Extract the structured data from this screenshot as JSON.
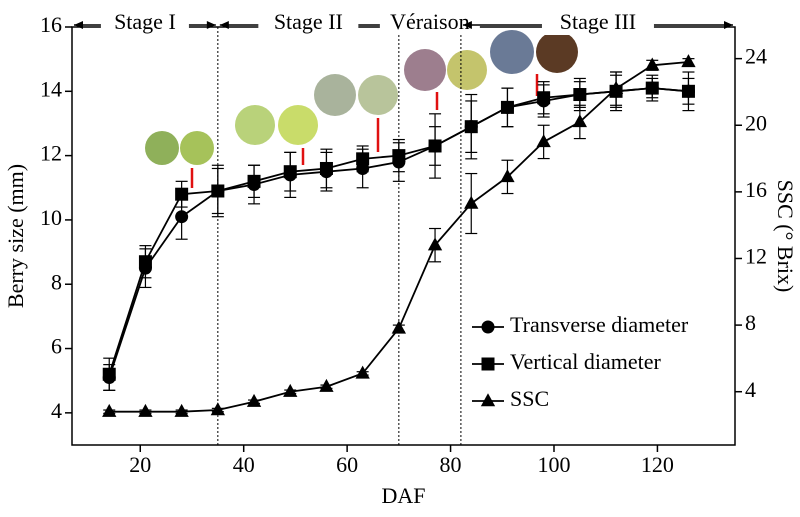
{
  "chart_data": {
    "type": "line",
    "xlabel": "DAF",
    "ylabel": "Berry size (mm)",
    "y2label": "SSC (° Brix)",
    "x": [
      14,
      21,
      28,
      35,
      42,
      49,
      56,
      63,
      70,
      77,
      84,
      91,
      98,
      105,
      112,
      119,
      126
    ],
    "series": [
      {
        "name": "Transverse diameter",
        "marker": "circle",
        "color": "#000000",
        "values": [
          5.1,
          8.5,
          10.1,
          10.9,
          11.1,
          11.4,
          11.5,
          11.6,
          11.8,
          12.3,
          12.9,
          13.5,
          13.7,
          13.9,
          14.0,
          14.1,
          14.0
        ],
        "errors": [
          0.4,
          0.6,
          0.7,
          0.7,
          0.6,
          0.7,
          0.6,
          0.6,
          0.6,
          1.0,
          1.0,
          0.6,
          0.5,
          0.4,
          0.5,
          0.3,
          0.6
        ]
      },
      {
        "name": "Vertical diameter",
        "marker": "square",
        "color": "#000000",
        "values": [
          5.2,
          8.7,
          10.8,
          10.9,
          11.2,
          11.5,
          11.6,
          11.9,
          12.0,
          12.3,
          12.9,
          13.5,
          13.8,
          13.9,
          14.0,
          14.1,
          14.0
        ],
        "errors": [
          0.5,
          0.5,
          0.4,
          0.8,
          0.5,
          0.6,
          0.6,
          0.4,
          0.5,
          0.6,
          0.8,
          0.6,
          0.5,
          0.5,
          0.6,
          0.4,
          0.4
        ]
      },
      {
        "name": "SSC",
        "marker": "triangle",
        "color": "#000000",
        "axis": "y2",
        "values": [
          2.8,
          2.8,
          2.8,
          2.9,
          3.4,
          4.0,
          4.3,
          5.1,
          7.8,
          12.8,
          15.3,
          16.9,
          19.0,
          20.2,
          22.2,
          23.6,
          23.8
        ],
        "errors": [
          0.1,
          0.1,
          0.1,
          0.1,
          0.1,
          0.1,
          0.1,
          0.1,
          0.2,
          1.0,
          1.8,
          1.0,
          1.0,
          1.0,
          1.0,
          0.3,
          0.2
        ]
      }
    ],
    "xlim": [
      6.8,
      135
    ],
    "xticks": [
      20,
      40,
      60,
      80,
      100,
      120
    ],
    "ylim": [
      3,
      16
    ],
    "yticks": [
      4,
      6,
      8,
      10,
      12,
      14,
      16
    ],
    "y2lim": [
      0.8,
      25.9
    ],
    "y2ticks": [
      4,
      8,
      12,
      16,
      20,
      24
    ],
    "stage_lines": [
      35,
      70,
      82
    ],
    "stages": [
      "Stage I",
      "Stage II",
      "Véraison",
      "Stage III"
    ],
    "legend": "lower right"
  }
}
